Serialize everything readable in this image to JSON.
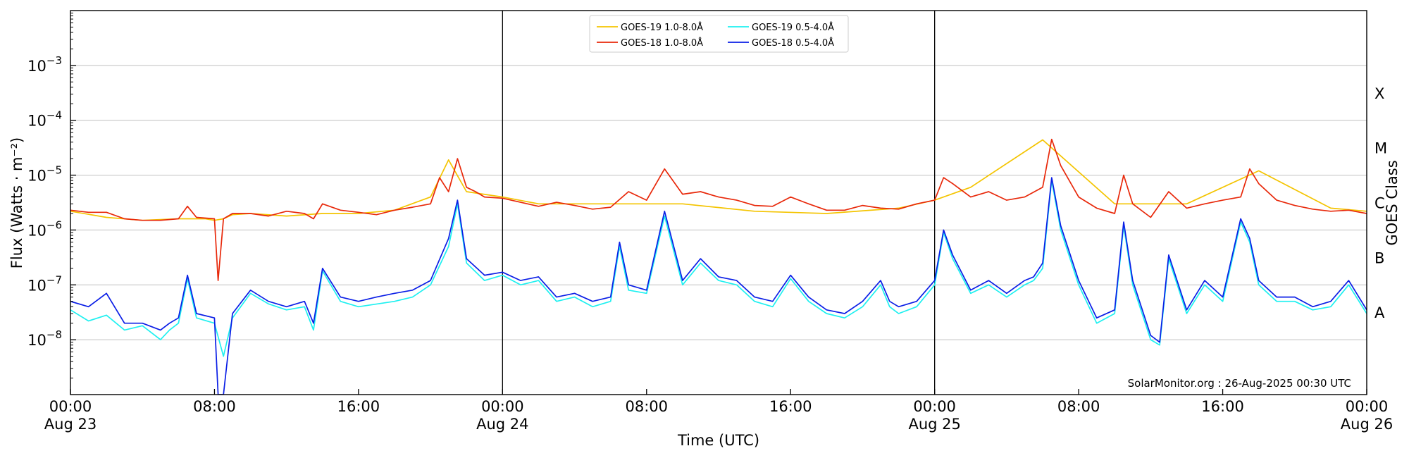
{
  "chart_data": {
    "type": "line",
    "title": "",
    "xlabel": "Time (UTC)",
    "ylabel": "Flux (Watts · m⁻²)",
    "y2label": "GOES Class",
    "yscale": "log",
    "ylim": [
      1e-09,
      0.01
    ],
    "xlim": [
      0,
      72
    ],
    "x_unit": "hours since Aug 23 00:00 UTC",
    "grid": "horizontal at decades 1e-8 … 1e-3",
    "day_separators": [
      "Aug 24 00:00",
      "Aug 25 00:00"
    ],
    "x_ticks": [
      {
        "time": "00:00",
        "date": "Aug 23"
      },
      {
        "time": "08:00",
        "date": ""
      },
      {
        "time": "16:00",
        "date": ""
      },
      {
        "time": "00:00",
        "date": "Aug 24"
      },
      {
        "time": "08:00",
        "date": ""
      },
      {
        "time": "16:00",
        "date": ""
      },
      {
        "time": "00:00",
        "date": "Aug 25"
      },
      {
        "time": "08:00",
        "date": ""
      },
      {
        "time": "16:00",
        "date": ""
      },
      {
        "time": "00:00",
        "date": "Aug 26"
      }
    ],
    "y_ticks": [
      {
        "base": "10",
        "exp": "−8"
      },
      {
        "base": "10",
        "exp": "−7"
      },
      {
        "base": "10",
        "exp": "−6"
      },
      {
        "base": "10",
        "exp": "−5"
      },
      {
        "base": "10",
        "exp": "−4"
      },
      {
        "base": "10",
        "exp": "−3"
      }
    ],
    "goes_classes": [
      "A",
      "B",
      "C",
      "M",
      "X"
    ],
    "legend": {
      "placement": "top-center",
      "columns": 2
    },
    "credit": "SolarMonitor.org : 26-Aug-2025 00:30 UTC",
    "series": [
      {
        "name": "GOES-19 1.0-8.0Å",
        "color": "#f4c400",
        "x": [
          0,
          2,
          4,
          6,
          7.5,
          8,
          8.5,
          9,
          10,
          12,
          14,
          16,
          18,
          20,
          21,
          22,
          24,
          26,
          30,
          34,
          38,
          42,
          46,
          48,
          50,
          54,
          58,
          62,
          66,
          70,
          72
        ],
        "values": [
          2.2e-06,
          1.7e-06,
          1.5e-06,
          1.6e-06,
          1.6e-06,
          1.5e-06,
          1.6e-06,
          1.9e-06,
          2e-06,
          1.8e-06,
          2e-06,
          2e-06,
          2.3e-06,
          4e-06,
          1.9e-05,
          5e-06,
          4e-06,
          3e-06,
          3e-06,
          3e-06,
          2.2e-06,
          2e-06,
          2.5e-06,
          3.5e-06,
          6e-06,
          4.4e-05,
          3e-06,
          3e-06,
          1.2e-05,
          2.5e-06,
          2.2e-06
        ]
      },
      {
        "name": "GOES-18 1.0-8.0Å",
        "color": "#e8280a",
        "x": [
          0,
          1,
          2,
          3,
          4,
          5,
          6,
          6.5,
          7,
          8,
          8.2,
          8.5,
          9,
          10,
          11,
          12,
          13,
          13.5,
          14,
          15,
          16,
          17,
          18,
          19,
          20,
          20.5,
          21,
          21.5,
          22,
          22.5,
          23,
          24,
          25,
          26,
          27,
          28,
          29,
          30,
          31,
          32,
          33,
          34,
          35,
          36,
          37,
          38,
          39,
          40,
          41,
          42,
          43,
          44,
          45,
          46,
          47,
          48,
          48.5,
          49,
          50,
          51,
          52,
          53,
          54,
          54.5,
          55,
          56,
          57,
          58,
          58.5,
          59,
          60,
          61,
          62,
          63,
          64,
          65,
          65.5,
          66,
          67,
          68,
          69,
          70,
          71,
          72
        ],
        "values": [
          2.3e-06,
          2.1e-06,
          2.1e-06,
          1.6e-06,
          1.5e-06,
          1.5e-06,
          1.6e-06,
          2.7e-06,
          1.7e-06,
          1.6e-06,
          1.2e-07,
          1.6e-06,
          2e-06,
          2e-06,
          1.8e-06,
          2.2e-06,
          2e-06,
          1.6e-06,
          3e-06,
          2.3e-06,
          2.1e-06,
          1.9e-06,
          2.3e-06,
          2.6e-06,
          3e-06,
          9e-06,
          5e-06,
          2e-05,
          6e-06,
          5e-06,
          4e-06,
          3.8e-06,
          3.2e-06,
          2.7e-06,
          3.2e-06,
          2.8e-06,
          2.4e-06,
          2.6e-06,
          5e-06,
          3.5e-06,
          1.3e-05,
          4.5e-06,
          5e-06,
          4e-06,
          3.5e-06,
          2.8e-06,
          2.7e-06,
          4e-06,
          3e-06,
          2.3e-06,
          2.3e-06,
          2.8e-06,
          2.5e-06,
          2.4e-06,
          3e-06,
          3.5e-06,
          9e-06,
          7e-06,
          4e-06,
          5e-06,
          3.5e-06,
          4e-06,
          6e-06,
          4.5e-05,
          1.5e-05,
          4e-06,
          2.5e-06,
          2e-06,
          1e-05,
          3e-06,
          1.7e-06,
          5e-06,
          2.5e-06,
          3e-06,
          3.5e-06,
          4e-06,
          1.3e-05,
          7e-06,
          3.5e-06,
          2.8e-06,
          2.4e-06,
          2.2e-06,
          2.3e-06,
          2e-06
        ]
      },
      {
        "name": "GOES-19 0.5-4.0Å",
        "color": "#1ef0f0",
        "x": [
          0,
          1,
          2,
          3,
          4,
          5,
          5.5,
          6,
          6.5,
          7,
          8,
          8.5,
          9,
          10,
          11,
          12,
          13,
          13.5,
          14,
          15,
          16,
          18,
          19,
          20,
          21,
          21.5,
          22,
          23,
          24,
          25,
          26,
          27,
          28,
          29,
          30,
          30.5,
          31,
          32,
          33,
          34,
          35,
          36,
          37,
          38,
          39,
          40,
          41,
          42,
          43,
          44,
          45,
          45.5,
          46,
          47,
          48,
          48.5,
          49,
          50,
          51,
          52,
          53,
          53.5,
          54,
          54.5,
          55,
          56,
          57,
          58,
          58.5,
          59,
          60,
          60.5,
          61,
          62,
          63,
          64,
          65,
          65.5,
          66,
          67,
          68,
          69,
          70,
          71,
          72
        ],
        "values": [
          3.5e-08,
          2.2e-08,
          2.8e-08,
          1.5e-08,
          1.8e-08,
          1e-08,
          1.5e-08,
          2e-08,
          1.3e-07,
          2.5e-08,
          2e-08,
          5e-09,
          2.5e-08,
          7e-08,
          4.5e-08,
          3.5e-08,
          4e-08,
          1.5e-08,
          1.8e-07,
          5e-08,
          4e-08,
          5e-08,
          6e-08,
          1e-07,
          5e-07,
          3e-06,
          2.5e-07,
          1.2e-07,
          1.5e-07,
          1e-07,
          1.2e-07,
          5e-08,
          6e-08,
          4e-08,
          5e-08,
          5e-07,
          8e-08,
          7e-08,
          1.8e-06,
          1e-07,
          2.5e-07,
          1.2e-07,
          1e-07,
          5e-08,
          4e-08,
          1.3e-07,
          5e-08,
          3e-08,
          2.5e-08,
          4e-08,
          1e-07,
          4e-08,
          3e-08,
          4e-08,
          1e-07,
          9e-07,
          3e-07,
          7e-08,
          1e-07,
          6e-08,
          1e-07,
          1.2e-07,
          2e-07,
          8e-06,
          1e-06,
          1e-07,
          2e-08,
          3e-08,
          1.2e-06,
          1e-07,
          1e-08,
          8e-09,
          3e-07,
          3e-08,
          1e-07,
          5e-08,
          1.4e-06,
          6e-07,
          1e-07,
          5e-08,
          5e-08,
          3.5e-08,
          4e-08,
          1e-07,
          3e-08
        ]
      },
      {
        "name": "GOES-18 0.5-4.0Å",
        "color": "#0a1ee6",
        "x": [
          0,
          1,
          2,
          3,
          4,
          5,
          5.5,
          6,
          6.5,
          7,
          8,
          8.2,
          8.5,
          9,
          10,
          11,
          12,
          13,
          13.5,
          14,
          15,
          16,
          17,
          18,
          19,
          20,
          21,
          21.5,
          22,
          23,
          24,
          25,
          26,
          27,
          28,
          29,
          30,
          30.5,
          31,
          32,
          33,
          34,
          35,
          36,
          37,
          38,
          39,
          40,
          41,
          42,
          43,
          44,
          45,
          45.5,
          46,
          47,
          48,
          48.5,
          49,
          50,
          51,
          52,
          53,
          53.5,
          54,
          54.5,
          55,
          56,
          57,
          58,
          58.5,
          59,
          60,
          60.5,
          61,
          62,
          63,
          64,
          65,
          65.5,
          66,
          67,
          68,
          69,
          70,
          71,
          72
        ],
        "values": [
          5e-08,
          4e-08,
          7e-08,
          2e-08,
          2e-08,
          1.5e-08,
          2e-08,
          2.5e-08,
          1.5e-07,
          3e-08,
          2.5e-08,
          1e-09,
          1e-09,
          3e-08,
          8e-08,
          5e-08,
          4e-08,
          5e-08,
          2e-08,
          2e-07,
          6e-08,
          5e-08,
          6e-08,
          7e-08,
          8e-08,
          1.2e-07,
          7e-07,
          3.5e-06,
          3e-07,
          1.5e-07,
          1.7e-07,
          1.2e-07,
          1.4e-07,
          6e-08,
          7e-08,
          5e-08,
          6e-08,
          6e-07,
          1e-07,
          8e-08,
          2.2e-06,
          1.2e-07,
          3e-07,
          1.4e-07,
          1.2e-07,
          6e-08,
          5e-08,
          1.5e-07,
          6e-08,
          3.5e-08,
          3e-08,
          5e-08,
          1.2e-07,
          5e-08,
          4e-08,
          5e-08,
          1.2e-07,
          1e-06,
          3.5e-07,
          8e-08,
          1.2e-07,
          7e-08,
          1.2e-07,
          1.4e-07,
          2.5e-07,
          9e-06,
          1.2e-06,
          1.2e-07,
          2.5e-08,
          3.5e-08,
          1.4e-06,
          1.2e-07,
          1.2e-08,
          9e-09,
          3.5e-07,
          3.5e-08,
          1.2e-07,
          6e-08,
          1.6e-06,
          7e-07,
          1.2e-07,
          6e-08,
          6e-08,
          4e-08,
          5e-08,
          1.2e-07,
          3.5e-08
        ]
      }
    ]
  }
}
